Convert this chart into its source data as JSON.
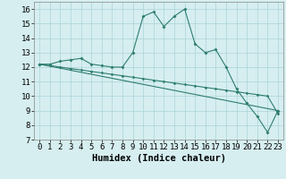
{
  "line1_x": [
    0,
    1,
    2,
    3,
    4,
    5,
    6,
    7,
    8,
    9,
    10,
    11,
    12,
    13,
    14,
    15,
    16,
    17,
    18,
    19,
    20,
    21,
    22,
    23
  ],
  "line1_y": [
    12.2,
    12.2,
    12.4,
    12.5,
    12.6,
    12.2,
    12.1,
    12.0,
    12.0,
    13.0,
    15.5,
    15.8,
    14.8,
    15.5,
    16.0,
    13.6,
    13.0,
    13.2,
    12.0,
    10.5,
    9.5,
    8.6,
    7.5,
    9.0
  ],
  "line2_x": [
    0,
    1,
    2,
    3,
    4,
    5,
    6,
    7,
    8,
    9,
    10,
    11,
    12,
    13,
    14,
    15,
    16,
    17,
    18,
    19,
    20,
    21,
    22,
    23
  ],
  "line2_y": [
    12.2,
    12.1,
    12.0,
    11.9,
    11.8,
    11.7,
    11.6,
    11.5,
    11.4,
    11.3,
    11.2,
    11.1,
    11.0,
    10.9,
    10.8,
    10.7,
    10.6,
    10.5,
    10.4,
    10.3,
    10.2,
    10.1,
    10.0,
    8.8
  ],
  "line3_x": [
    0,
    23
  ],
  "line3_y": [
    12.2,
    9.0
  ],
  "line_color": "#2e7d6e",
  "bg_color": "#d6eef0",
  "grid_color": "#aad3d8",
  "xlabel": "Humidex (Indice chaleur)",
  "xlim": [
    -0.5,
    23.5
  ],
  "ylim": [
    7,
    16.5
  ],
  "yticks": [
    7,
    8,
    9,
    10,
    11,
    12,
    13,
    14,
    15,
    16
  ],
  "xticks": [
    0,
    1,
    2,
    3,
    4,
    5,
    6,
    7,
    8,
    9,
    10,
    11,
    12,
    13,
    14,
    15,
    16,
    17,
    18,
    19,
    20,
    21,
    22,
    23
  ],
  "xlabel_fontsize": 7.5,
  "tick_fontsize": 6.5
}
